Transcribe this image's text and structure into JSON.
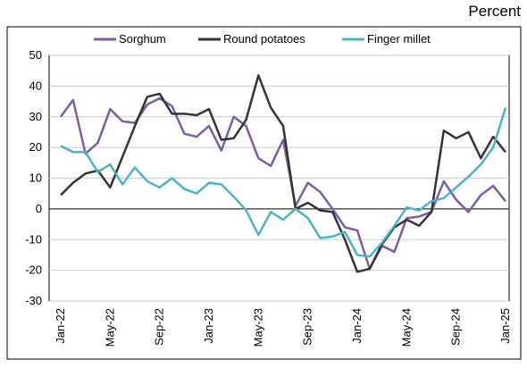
{
  "chart_data": {
    "type": "line",
    "unit_label": "Percent",
    "categories": [
      "Jan-22",
      null,
      null,
      null,
      "May-22",
      null,
      null,
      null,
      "Sep-22",
      null,
      null,
      null,
      "Jan-23",
      null,
      null,
      null,
      "May-23",
      null,
      null,
      null,
      "Sep-23",
      null,
      null,
      null,
      "Jan-24",
      null,
      null,
      null,
      "May-24",
      null,
      null,
      null,
      "Sep-24",
      null,
      null,
      null,
      "Jan-25"
    ],
    "series": [
      {
        "name": "Sorghum",
        "color": "#7d5ca6",
        "values": [
          30,
          35.5,
          18,
          21.5,
          32.5,
          28.5,
          28,
          34,
          36,
          33.5,
          24.5,
          23.5,
          27,
          19,
          30,
          27,
          16.5,
          14,
          22.5,
          1,
          8.5,
          5.5,
          0,
          -6,
          -7,
          -19.5,
          -12,
          -14,
          -3,
          -2.5,
          -1,
          9,
          3,
          -1,
          4.5,
          7.5,
          2.5
        ]
      },
      {
        "name": "Round potatoes",
        "color": "#333333",
        "values": [
          4.5,
          8.5,
          11.5,
          12.5,
          7,
          17,
          27,
          36.5,
          37.5,
          31,
          31,
          30.5,
          32.5,
          22.5,
          23,
          29,
          43.5,
          33,
          27,
          0,
          2,
          -0.5,
          -1,
          -10,
          -20.5,
          -19.5,
          -11.5,
          -6,
          -3.5,
          -5.5,
          -1,
          25.5,
          23,
          25,
          16.5,
          23.5,
          18.5
        ]
      },
      {
        "name": "Finger millet",
        "color": "#4bb3c9",
        "values": [
          20.5,
          18.5,
          18.5,
          12,
          14.5,
          8,
          13.5,
          9,
          7,
          10,
          6.5,
          5,
          8.5,
          8,
          4,
          -0.5,
          -8.5,
          -1,
          -3.5,
          0,
          -3,
          -9.5,
          -9,
          -7.5,
          -15,
          -15.5,
          -11,
          -5.5,
          0.5,
          -0.5,
          2.5,
          3.5,
          7,
          10.5,
          14.5,
          20,
          33
        ]
      }
    ],
    "ylim": [
      -30,
      50
    ],
    "yticks": [
      -30,
      -20,
      -10,
      0,
      10,
      20,
      30,
      40,
      50
    ],
    "grid": true
  }
}
